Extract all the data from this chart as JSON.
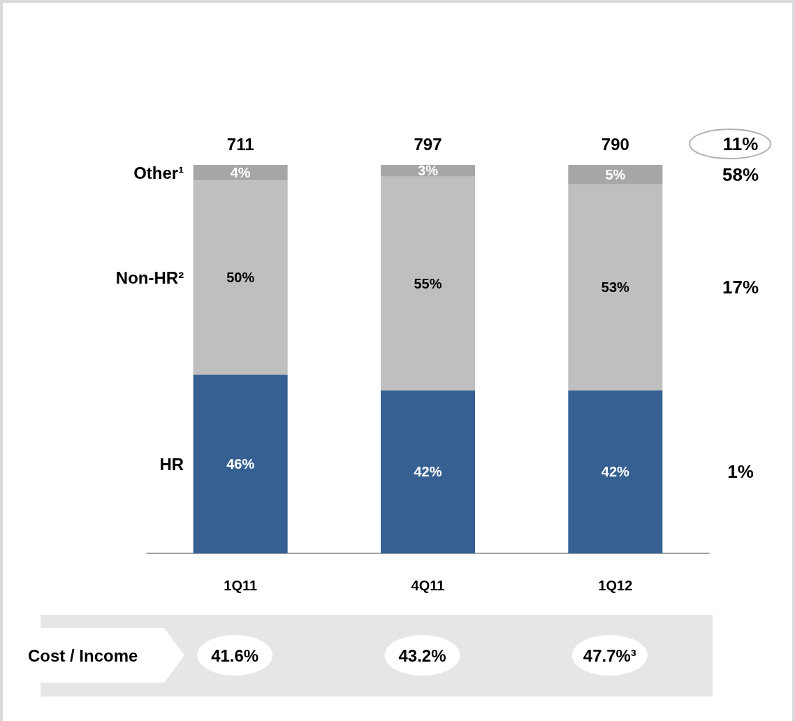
{
  "chart_data": {
    "type": "bar",
    "stacked": true,
    "categories": [
      "1Q11",
      "4Q11",
      "1Q12"
    ],
    "series": [
      {
        "name": "HR",
        "color": "#366092",
        "values": [
          46,
          42,
          42
        ],
        "value_labels": [
          "46%",
          "42%",
          "42%"
        ]
      },
      {
        "name": "Non-HR²",
        "color": "#bfbfbf",
        "values": [
          50,
          55,
          53
        ],
        "value_labels": [
          "50%",
          "55%",
          "53%"
        ]
      },
      {
        "name": "Other¹",
        "color": "#a6a6a6",
        "values": [
          4,
          3,
          5
        ],
        "value_labels": [
          "4%",
          "3%",
          "5%"
        ]
      }
    ],
    "annotations": [
      "711",
      "797",
      "790",
      "11%",
      "58%",
      "17%",
      "1%",
      "Cost / Income",
      "41.6%",
      "43.2%",
      "47.7%³"
    ],
    "legend": false
  }
}
